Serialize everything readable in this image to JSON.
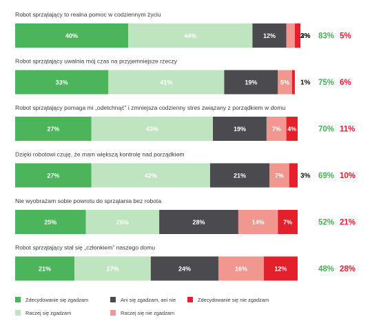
{
  "chart_data": {
    "type": "bar",
    "orientation": "horizontal",
    "stacked": true,
    "xlim": [
      0,
      100
    ],
    "categories": [
      "Robot sprzątający to realna pomoc w codziennym życiu",
      "Robot sprzątający uwalnia mój czas na przyjemniejsze rzeczy",
      "Robot sprzątający pomaga mi „odetchnąć” i zmniejsza codzienny stres związany z porządkiem w domu",
      "Dzięki robotowi czuję, że mam większą kontrolę nad porządkiem",
      "Nie wyobrażam sobie powrotu do sprzątania bez robota",
      "Robot sprzątający stał się „członkiem” naszego domu"
    ],
    "series": [
      {
        "name": "Zdecydowanie się zgadzam",
        "color": "#4cb45a",
        "values": [
          40,
          33,
          27,
          27,
          25,
          21
        ]
      },
      {
        "name": "Raczej się zgadzam",
        "color": "#bfe5c0",
        "values": [
          44,
          41,
          43,
          42,
          26,
          27
        ]
      },
      {
        "name": "Ani się zgadzam, ani nie",
        "color": "#4a4a4f",
        "values": [
          12,
          19,
          19,
          21,
          28,
          24
        ]
      },
      {
        "name": "Raczej się nie zgadzam",
        "color": "#f2978f",
        "values": [
          3,
          5,
          7,
          7,
          14,
          16
        ]
      },
      {
        "name": "Zdecydowanie się nie zgadzam",
        "color": "#e3202b",
        "values": [
          2,
          1,
          4,
          3,
          7,
          12
        ]
      }
    ],
    "data_labels": [
      [
        "40%",
        "44%",
        "12%",
        "3%",
        "2%"
      ],
      [
        "33%",
        "41%",
        "19%",
        "5%",
        "1%"
      ],
      [
        "27%",
        "43%",
        "19%",
        "7%",
        "4%"
      ],
      [
        "27%",
        "42%",
        "21%",
        "7%",
        "3%"
      ],
      [
        "25%",
        "26%",
        "28%",
        "14%",
        "7%"
      ],
      [
        "21%",
        "27%",
        "24%",
        "16%",
        "12%"
      ]
    ],
    "totals_agree": [
      "83%",
      "75%",
      "70%",
      "69%",
      "52%",
      "48%"
    ],
    "totals_disagree": [
      "5%",
      "6%",
      "11%",
      "10%",
      "21%",
      "28%"
    ],
    "legend_position": "bottom-left",
    "grid": false
  },
  "legend": {
    "items": [
      {
        "label": "Zdecydowanie się zgadzam",
        "color": "#4cb45a"
      },
      {
        "label": "Ani się zgadzam, ani nie",
        "color": "#4a4a4f"
      },
      {
        "label": "Zdecydowanie się nie zgadzam",
        "color": "#e3202b"
      },
      {
        "label": "Raczej się zgadzam",
        "color": "#bfe5c0"
      },
      {
        "label": "Raczej się nie zgadzam",
        "color": "#f2978f"
      }
    ]
  },
  "colors": {
    "agree_total": "#4aaf55",
    "disagree_total": "#e0202d"
  }
}
